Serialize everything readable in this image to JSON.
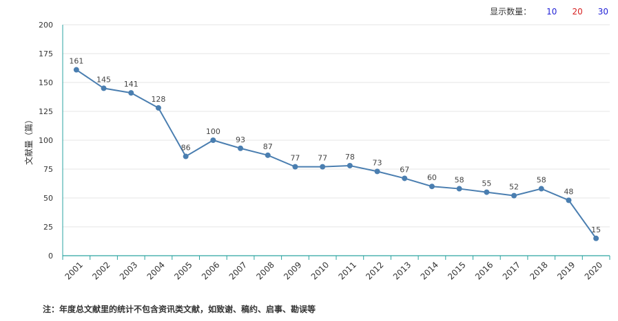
{
  "display_count": {
    "label": "显示数量：",
    "options": [
      {
        "label": "10",
        "color": "#1f1fd6"
      },
      {
        "label": "20",
        "color": "#d61f1f"
      },
      {
        "label": "30",
        "color": "#1f1fd6"
      }
    ]
  },
  "note": "注：年度总文献里的统计不包含资讯类文献，如致谢、稿约、启事、勘误等",
  "chart_data": {
    "type": "line",
    "title": "",
    "xlabel": "",
    "ylabel": "文献量（篇）",
    "ylim": [
      0,
      200
    ],
    "yticks": [
      0,
      25,
      50,
      75,
      100,
      125,
      150,
      175,
      200
    ],
    "grid": true,
    "line_color": "#4a7eb0",
    "categories": [
      "2001",
      "2002",
      "2003",
      "2004",
      "2005",
      "2006",
      "2007",
      "2008",
      "2009",
      "2010",
      "2011",
      "2012",
      "2013",
      "2014",
      "2015",
      "2016",
      "2017",
      "2018",
      "2019",
      "2020"
    ],
    "series": [
      {
        "values": [
          161,
          145,
          141,
          128,
          86,
          100,
          93,
          87,
          77,
          77,
          78,
          73,
          67,
          60,
          58,
          55,
          52,
          58,
          48,
          15
        ]
      }
    ]
  }
}
